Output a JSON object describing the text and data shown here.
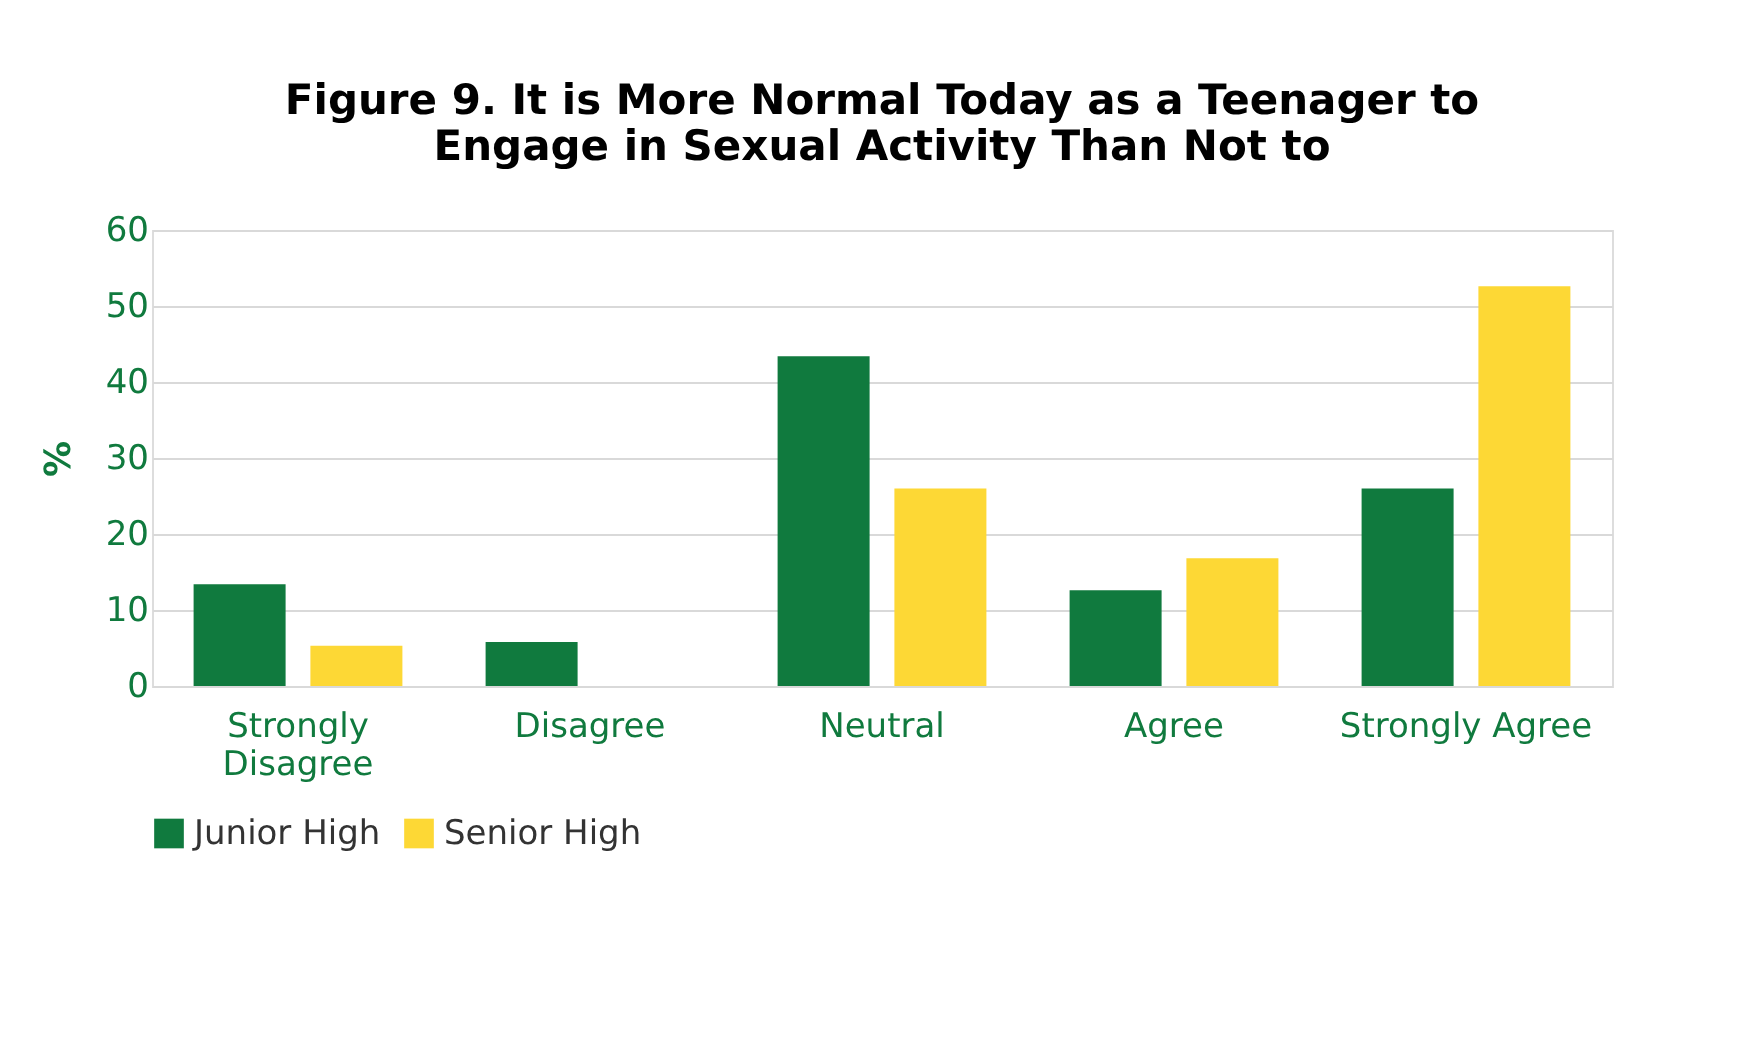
{
  "chart_data": {
    "type": "bar",
    "title": "Figure 9. It is More Normal Today as a Teenager to Engage in Sexual Activity Than Not to",
    "ylabel": "%",
    "categories": [
      "Strongly Disagree",
      "Disagree",
      "Neutral",
      "Agree",
      "Strongly Agree"
    ],
    "series": [
      {
        "name": "Junior High",
        "color": "#107a3e",
        "values": [
          13.4,
          5.8,
          43.4,
          12.6,
          26
        ]
      },
      {
        "name": "Senior High",
        "color": "#fdd835",
        "values": [
          5.3,
          0,
          26,
          16.8,
          52.6
        ]
      }
    ],
    "ylim": [
      0,
      60
    ],
    "yticks": [
      0,
      10,
      20,
      30,
      40,
      50,
      60
    ],
    "grid": "y",
    "legend": "bottom"
  }
}
